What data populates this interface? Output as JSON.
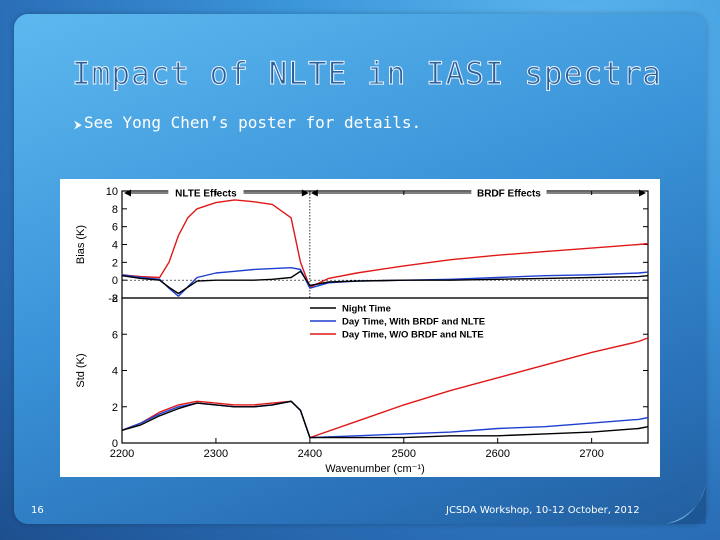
{
  "slide": {
    "title": "Impact of NLTE in IASI spectra",
    "bullet": "See Yong Chen’s poster for details.",
    "page_number": "16",
    "footer": "JCSDA Workshop, 10-12 October, 2012",
    "colors": {
      "background": "#3a93d8",
      "title": "#2a5f9a",
      "text": "#ffffff"
    }
  },
  "chart_data": [
    {
      "type": "line",
      "panel": "top",
      "ylabel": "Bias (K)",
      "ylim": [
        -2,
        10
      ],
      "yticks": [
        -2,
        0,
        2,
        4,
        6,
        8,
        10
      ],
      "xlim": [
        2200,
        2760
      ],
      "regions": [
        {
          "label": "NLTE Effects",
          "x_range": [
            2200,
            2400
          ]
        },
        {
          "label": "BRDF Effects",
          "x_range": [
            2400,
            2760
          ]
        }
      ],
      "series": [
        {
          "name": "Night Time",
          "color": "#000000",
          "x": [
            2200,
            2220,
            2240,
            2250,
            2260,
            2280,
            2300,
            2320,
            2340,
            2360,
            2380,
            2390,
            2400,
            2420,
            2450,
            2500,
            2550,
            2600,
            2650,
            2700,
            2750,
            2760
          ],
          "y": [
            0.5,
            0.2,
            0.0,
            -0.8,
            -1.5,
            -0.1,
            0.0,
            0.0,
            0.0,
            0.1,
            0.3,
            1.0,
            -0.6,
            -0.2,
            -0.1,
            0.0,
            0.0,
            0.1,
            0.2,
            0.3,
            0.4,
            0.5
          ]
        },
        {
          "name": "Day Time, With BRDF and NLTE",
          "color": "#1f3fd0",
          "x": [
            2200,
            2220,
            2240,
            2250,
            2260,
            2280,
            2300,
            2320,
            2340,
            2360,
            2380,
            2390,
            2400,
            2420,
            2450,
            2500,
            2550,
            2600,
            2650,
            2700,
            2750,
            2760
          ],
          "y": [
            0.6,
            0.3,
            0.1,
            -0.9,
            -1.8,
            0.3,
            0.8,
            1.0,
            1.2,
            1.3,
            1.4,
            1.2,
            -0.9,
            -0.3,
            -0.1,
            0.0,
            0.1,
            0.3,
            0.5,
            0.6,
            0.8,
            0.9
          ]
        },
        {
          "name": "Day Time, W/O BRDF and NLTE",
          "color": "#e01818",
          "x": [
            2200,
            2220,
            2240,
            2250,
            2260,
            2270,
            2280,
            2300,
            2320,
            2340,
            2360,
            2380,
            2390,
            2400,
            2420,
            2450,
            2500,
            2550,
            2600,
            2650,
            2700,
            2750,
            2760
          ],
          "y": [
            0.6,
            0.4,
            0.3,
            2.0,
            5.0,
            7.0,
            8.0,
            8.7,
            9.0,
            8.8,
            8.5,
            7.0,
            2.0,
            -0.8,
            0.2,
            0.8,
            1.6,
            2.3,
            2.8,
            3.2,
            3.6,
            4.0,
            4.1
          ]
        }
      ]
    },
    {
      "type": "line",
      "panel": "bottom",
      "ylabel": "Std (K)",
      "xlabel": "Wavenumber (cm⁻¹)",
      "ylim": [
        0,
        8
      ],
      "yticks": [
        0,
        2,
        4,
        6,
        8
      ],
      "xlim": [
        2200,
        2760
      ],
      "xticks": [
        2200,
        2300,
        2400,
        2500,
        2600,
        2700
      ],
      "series": [
        {
          "name": "Night Time",
          "color": "#000000",
          "x": [
            2200,
            2220,
            2240,
            2260,
            2280,
            2300,
            2320,
            2340,
            2360,
            2380,
            2390,
            2400,
            2450,
            2500,
            2550,
            2600,
            2650,
            2700,
            2750,
            2760
          ],
          "y": [
            0.7,
            1.0,
            1.5,
            1.9,
            2.2,
            2.1,
            2.0,
            2.0,
            2.1,
            2.3,
            1.8,
            0.3,
            0.3,
            0.3,
            0.4,
            0.4,
            0.5,
            0.6,
            0.8,
            0.9
          ]
        },
        {
          "name": "Day Time, With BRDF and NLTE",
          "color": "#1f3fd0",
          "x": [
            2200,
            2220,
            2240,
            2260,
            2280,
            2300,
            2320,
            2340,
            2360,
            2380,
            2390,
            2400,
            2450,
            2500,
            2550,
            2600,
            2650,
            2700,
            2750,
            2760
          ],
          "y": [
            0.7,
            1.1,
            1.6,
            2.0,
            2.2,
            2.1,
            2.0,
            2.0,
            2.1,
            2.3,
            1.8,
            0.3,
            0.4,
            0.5,
            0.6,
            0.8,
            0.9,
            1.1,
            1.3,
            1.4
          ]
        },
        {
          "name": "Day Time, W/O BRDF and NLTE",
          "color": "#e01818",
          "x": [
            2200,
            2220,
            2240,
            2260,
            2280,
            2300,
            2320,
            2340,
            2360,
            2380,
            2390,
            2400,
            2450,
            2500,
            2550,
            2600,
            2650,
            2700,
            2750,
            2760
          ],
          "y": [
            0.7,
            1.1,
            1.7,
            2.1,
            2.3,
            2.2,
            2.1,
            2.1,
            2.2,
            2.3,
            1.8,
            0.3,
            1.2,
            2.1,
            2.9,
            3.6,
            4.3,
            5.0,
            5.6,
            5.8
          ]
        }
      ]
    }
  ]
}
